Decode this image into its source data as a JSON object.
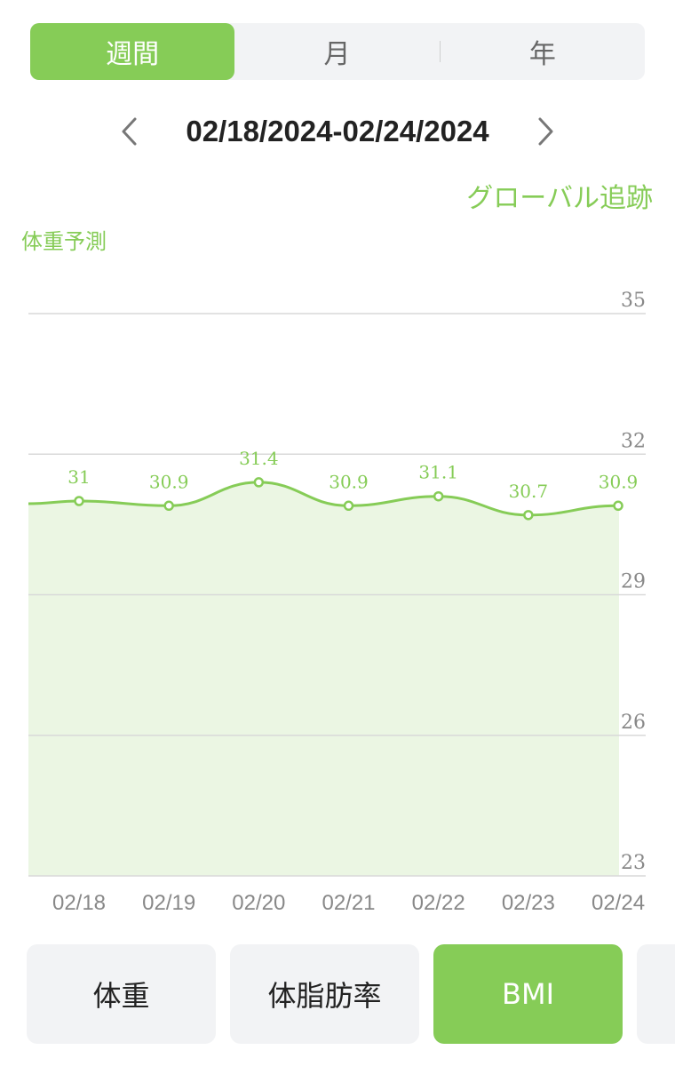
{
  "period_tabs": [
    {
      "label": "週間",
      "active": true
    },
    {
      "label": "月",
      "active": false
    },
    {
      "label": "年",
      "active": false
    }
  ],
  "date_range": "02/18/2024-02/24/2024",
  "global_tracking_label": "グローバル追跡",
  "colors": {
    "accent": "#86cc57",
    "fill": "#ebf6e3",
    "grid": "#d9d9d9",
    "axis_text": "#888888",
    "tab_bg": "#f2f3f5"
  },
  "chart_data": {
    "type": "area",
    "series_label": "体重予測",
    "x": [
      "02/18",
      "02/19",
      "02/20",
      "02/21",
      "02/22",
      "02/23",
      "02/24"
    ],
    "series": [
      {
        "values": [
          31,
          30.9,
          31.4,
          30.9,
          31.1,
          30.7,
          30.9
        ]
      }
    ],
    "y_ticks": [
      35,
      32,
      29,
      26,
      23
    ],
    "ylim": [
      23,
      35
    ],
    "grid": true,
    "y_axis_side": "right"
  },
  "metric_tabs": [
    {
      "label": "体重",
      "active": false
    },
    {
      "label": "体脂肪率",
      "active": false
    },
    {
      "label": "BMI",
      "active": true
    },
    {
      "label": "",
      "active": false
    }
  ],
  "icons": {
    "prev": "chevron-left-icon",
    "next": "chevron-right-icon"
  }
}
